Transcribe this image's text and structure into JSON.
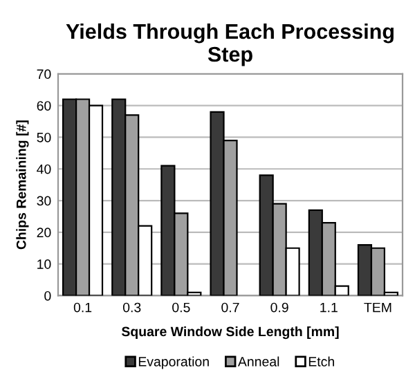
{
  "chart_data": {
    "type": "bar",
    "title": "Yields Through Each Processing Step",
    "xlabel": "Square Window Side Length [mm]",
    "ylabel": "Chips Remaining [#]",
    "categories": [
      "0.1",
      "0.3",
      "0.5",
      "0.7",
      "0.9",
      "1.1",
      "TEM"
    ],
    "series": [
      {
        "name": "Evaporation",
        "color": "#3a3a3a",
        "values": [
          62,
          62,
          41,
          58,
          38,
          27,
          16
        ]
      },
      {
        "name": "Anneal",
        "color": "#a0a0a0",
        "values": [
          62,
          57,
          26,
          49,
          29,
          23,
          15
        ]
      },
      {
        "name": "Etch",
        "color": "#ffffff",
        "values": [
          60,
          22,
          1,
          null,
          15,
          3,
          1
        ]
      }
    ],
    "ylim": [
      0,
      70
    ],
    "yticks": [
      0,
      10,
      20,
      30,
      40,
      50,
      60,
      70
    ],
    "grid": "y",
    "legend": "bottom"
  }
}
